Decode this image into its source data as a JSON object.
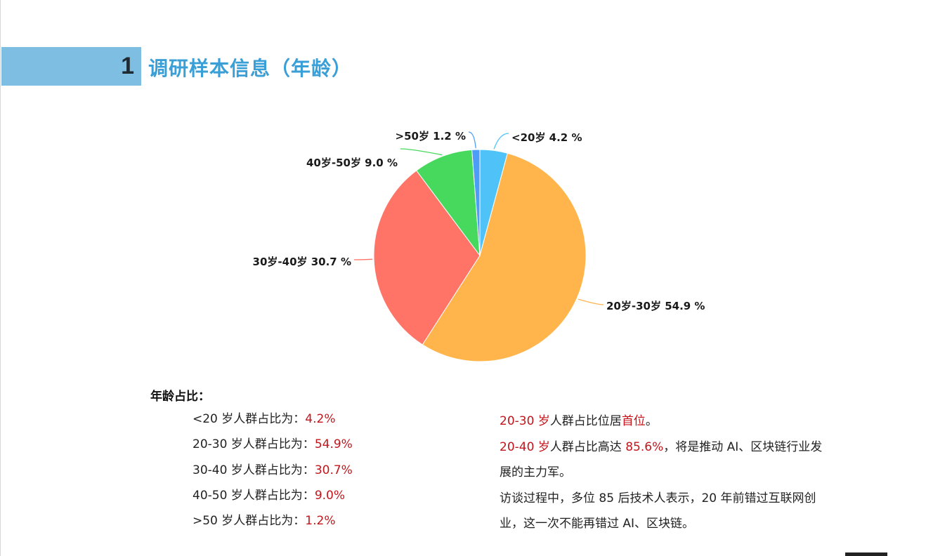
{
  "header": {
    "number": "1",
    "title": "调研样本信息（年龄）"
  },
  "chart_data": {
    "type": "pie",
    "start": "top, clockwise",
    "slices": [
      {
        "label": "<20岁",
        "value": 4.2,
        "text": "<20岁  4.2 %",
        "color": "#4fc3f7"
      },
      {
        "label": "20岁-30岁",
        "value": 54.9,
        "text": "20岁-30岁  54.9 %",
        "color": "#ffb54c"
      },
      {
        "label": "30岁-40岁",
        "value": 30.7,
        "text": "30岁-40岁  30.7 %",
        "color": "#ff7466"
      },
      {
        "label": "40岁-50岁",
        "value": 9.0,
        "text": "40岁-50岁  9.0 %",
        "color": "#47d95e"
      },
      {
        "label": ">50岁",
        "value": 1.2,
        "text": ">50岁  1.2 %",
        "color": "#4b9df7"
      }
    ]
  },
  "stats": {
    "heading": "年龄占比：",
    "items": [
      {
        "label": "<20 岁人群占比为：",
        "value": "4.2%"
      },
      {
        "label": "20-30 岁人群占比为：",
        "value": "54.9%"
      },
      {
        "label": "30-40 岁人群占比为：",
        "value": "30.7%"
      },
      {
        "label": "40-50 岁人群占比为：",
        "value": "9.0%"
      },
      {
        "label": ">50 岁人群占比为：",
        "value": "1.2%"
      }
    ]
  },
  "summary": {
    "p1_red1": "20-30 岁",
    "p1_text": "人群占比位居",
    "p1_red2": "首位",
    "p1_end": "。",
    "p2_red1": "20-40 岁",
    "p2_text": "人群占比高达 ",
    "p2_red2": "85.6%",
    "p2_end": "，将是推动 AI、区块链行业发展的主力军。",
    "p3": "访谈过程中，多位 85 后技术人表示，20 年前错过互联网创业，这一次不能再错过 AI、区块链。"
  }
}
